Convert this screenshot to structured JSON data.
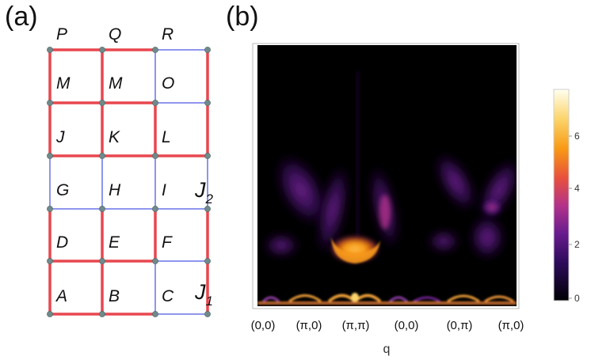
{
  "panels": {
    "a": "(a)",
    "b": "(b)"
  },
  "lattice": {
    "rows": [
      [
        "P",
        "Q",
        "R"
      ],
      [
        "M",
        "M",
        "O"
      ],
      [
        "J",
        "K",
        "L"
      ],
      [
        "G",
        "H",
        "I"
      ],
      [
        "D",
        "E",
        "F"
      ],
      [
        "A",
        "B",
        "C"
      ]
    ],
    "coupling_labels": {
      "j2": {
        "main": "J",
        "sub": "2"
      },
      "j1": {
        "main": "J",
        "sub": "1"
      }
    },
    "colors": {
      "j1_bond": "#e8474f",
      "j2_bond": "#8f95ee",
      "node": "#6f8a8a"
    }
  },
  "spectrum": {
    "x_ticks": [
      "(0,0)",
      "(π,0)",
      "(π,π)",
      "(0,0)",
      "(0,π)",
      "(π,0)"
    ],
    "x_label": "q",
    "colorbar_ticks": [
      "6",
      "4",
      "2",
      "0"
    ],
    "colormap": [
      "#000004",
      "#2c0b5a",
      "#6a1c8f",
      "#b3328a",
      "#e8503d",
      "#f89a14",
      "#fcd46a",
      "#fffff0"
    ]
  }
}
